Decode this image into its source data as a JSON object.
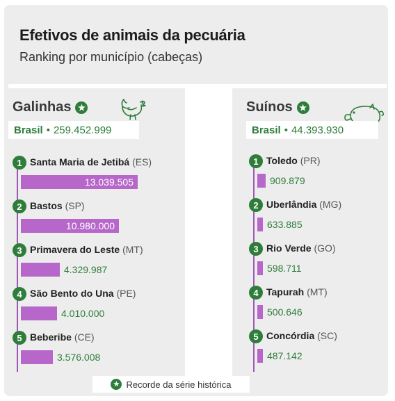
{
  "header": {
    "title": "Efetivos de animais da pecuária",
    "subtitle": "Ranking por município (cabeças)"
  },
  "footer": {
    "legend": "Recorde da série histórica",
    "star_icon": "★"
  },
  "colors": {
    "green": "#2e7d3a",
    "purple": "#b667c9",
    "background": "#ededed"
  },
  "chart_data": [
    {
      "type": "bar",
      "orientation": "horizontal",
      "title": "Galinhas",
      "icon": "chicken-icon",
      "record_marker": true,
      "total_label": "Brasil",
      "total_value": "259.452.999",
      "max_value": 13039505,
      "items": [
        {
          "rank": "1",
          "name": "Santa Maria de Jetibá",
          "state": "(ES)",
          "value": 13039505,
          "label": "13.039.505"
        },
        {
          "rank": "2",
          "name": "Bastos",
          "state": "(SP)",
          "value": 10980000,
          "label": "10.980.000"
        },
        {
          "rank": "3",
          "name": "Primavera do Leste",
          "state": "(MT)",
          "value": 4329987,
          "label": "4.329.987"
        },
        {
          "rank": "4",
          "name": "São Bento do Una",
          "state": "(PE)",
          "value": 4010000,
          "label": "4.010.000"
        },
        {
          "rank": "5",
          "name": "Beberibe",
          "state": "(CE)",
          "value": 3576008,
          "label": "3.576.008"
        }
      ]
    },
    {
      "type": "bar",
      "orientation": "horizontal",
      "title": "Suínos",
      "icon": "pig-icon",
      "record_marker": true,
      "total_label": "Brasil",
      "total_value": "44.393.930",
      "max_value": 13039505,
      "items": [
        {
          "rank": "1",
          "name": "Toledo",
          "state": "(PR)",
          "value": 909879,
          "label": "909.879"
        },
        {
          "rank": "2",
          "name": "Uberlândia",
          "state": "(MG)",
          "value": 633885,
          "label": "633.885"
        },
        {
          "rank": "3",
          "name": "Rio Verde",
          "state": "(GO)",
          "value": 598711,
          "label": "598.711"
        },
        {
          "rank": "4",
          "name": "Tapurah",
          "state": "(MT)",
          "value": 500646,
          "label": "500.646"
        },
        {
          "rank": "5",
          "name": "Concórdia",
          "state": "(SC)",
          "value": 487142,
          "label": "487.142"
        }
      ]
    }
  ]
}
